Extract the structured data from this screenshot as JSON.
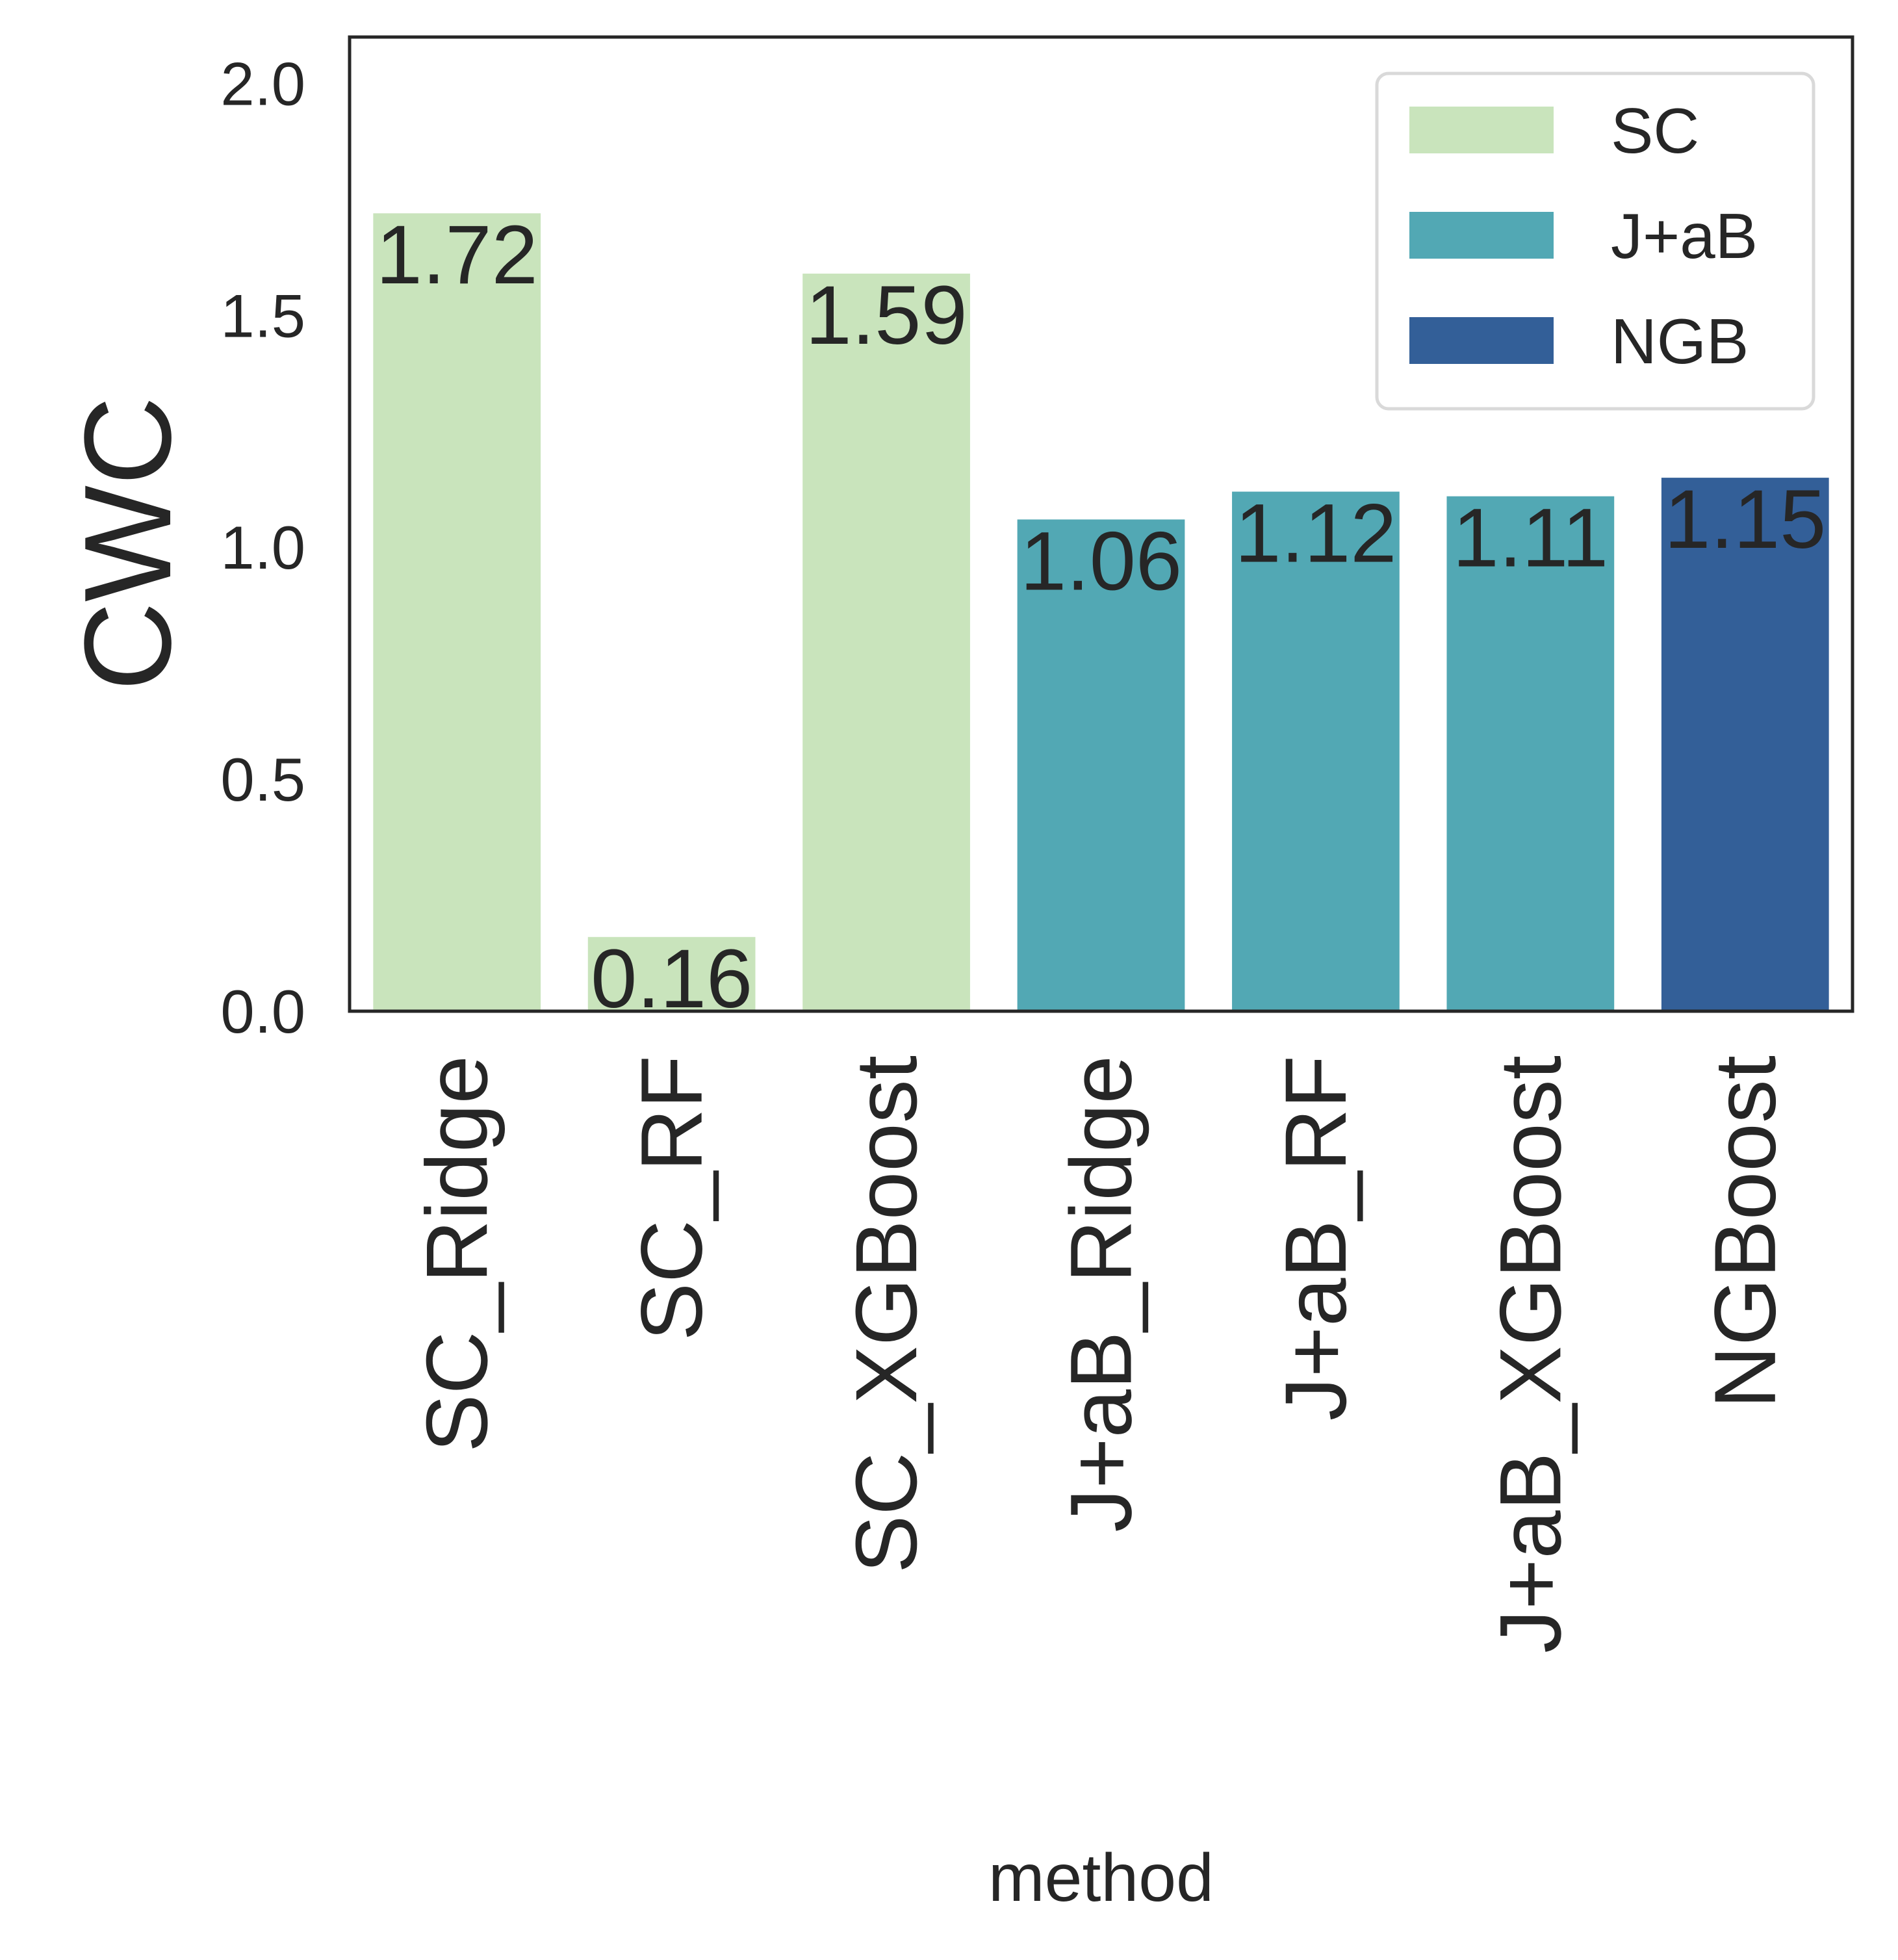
{
  "chart_data": {
    "type": "bar",
    "categories": [
      "SC_Ridge",
      "SC_RF",
      "SC_XGBoost",
      "J+aB_Ridge",
      "J+aB_RF",
      "J+aB_XGBoost",
      "NGBoost"
    ],
    "values": [
      1.72,
      0.16,
      1.59,
      1.06,
      1.12,
      1.11,
      1.15
    ],
    "value_labels": [
      "1.72",
      "0.16",
      "1.59",
      "1.06",
      "1.12",
      "1.11",
      "1.15"
    ],
    "groups": [
      "SC",
      "SC",
      "SC",
      "J+aB",
      "J+aB",
      "J+aB",
      "NGB"
    ],
    "title": "",
    "xlabel": "method",
    "ylabel": "CWC",
    "ylim": [
      0,
      2.1
    ],
    "yticks": [
      0.0,
      0.5,
      1.0,
      1.5,
      2.0
    ],
    "ytick_labels": [
      "0.0",
      "0.5",
      "1.0",
      "1.5",
      "2.0"
    ],
    "grid": false,
    "legend": {
      "placement": "top-right",
      "entries": [
        {
          "label": "SC",
          "color": "#c9e4bc"
        },
        {
          "label": "J+aB",
          "color": "#52a8b4"
        },
        {
          "label": "NGB",
          "color": "#335f98"
        }
      ]
    },
    "colors": {
      "SC": "#c9e4bc",
      "J+aB": "#52a8b4",
      "NGB": "#335f98",
      "text": "#262626",
      "axes": "#262626",
      "legend_border": "#d9d9d9"
    }
  }
}
